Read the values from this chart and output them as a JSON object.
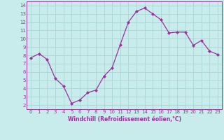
{
  "x": [
    0,
    1,
    2,
    3,
    4,
    5,
    6,
    7,
    8,
    9,
    10,
    11,
    12,
    13,
    14,
    15,
    16,
    17,
    18,
    19,
    20,
    21,
    22,
    23
  ],
  "y": [
    7.7,
    8.2,
    7.5,
    5.2,
    4.3,
    2.2,
    2.6,
    3.5,
    3.8,
    5.5,
    6.5,
    9.3,
    12.0,
    13.3,
    13.7,
    13.0,
    12.3,
    10.7,
    10.8,
    10.8,
    9.2,
    9.8,
    8.5,
    8.1
  ],
  "line_color": "#993399",
  "marker": "D",
  "marker_size": 2.0,
  "bg_color": "#c8ecec",
  "grid_color": "#aad4d4",
  "xlabel": "Windchill (Refroidissement éolien,°C)",
  "yticks": [
    2,
    3,
    4,
    5,
    6,
    7,
    8,
    9,
    10,
    11,
    12,
    13,
    14
  ],
  "xlim": [
    -0.5,
    23.5
  ],
  "ylim": [
    1.5,
    14.5
  ],
  "tick_color": "#993399",
  "spine_color": "#993399",
  "tick_fontsize": 5.0,
  "xlabel_fontsize": 5.5
}
